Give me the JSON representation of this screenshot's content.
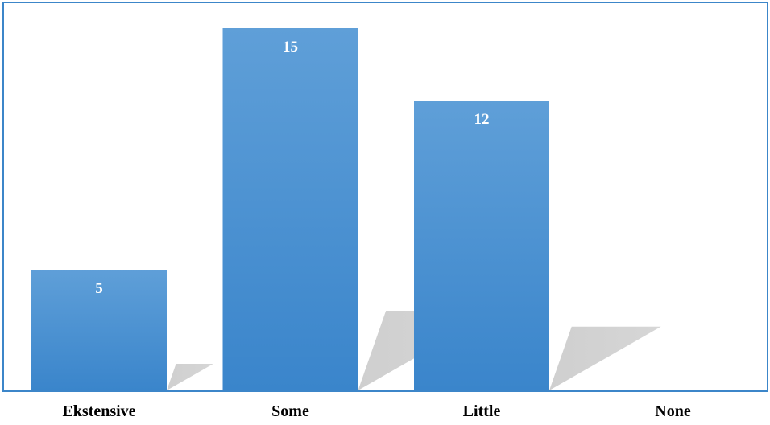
{
  "chart_data": {
    "type": "bar",
    "categories": [
      "Ekstensive",
      "Some",
      "Little",
      "None"
    ],
    "values": [
      5,
      15,
      12,
      0
    ],
    "data_labels": [
      "5",
      "15",
      "12",
      ""
    ],
    "title": "",
    "xlabel": "",
    "ylabel": "",
    "ylim": [
      0,
      15
    ],
    "grid": false,
    "legend": "none",
    "colors": {
      "bar_top": "#5f9fd8",
      "bar_bottom": "#3a85cb",
      "shadow": "#cfcfcf",
      "frame": "#3c86c9",
      "data_label": "#ffffff",
      "category_label": "#000000"
    }
  }
}
